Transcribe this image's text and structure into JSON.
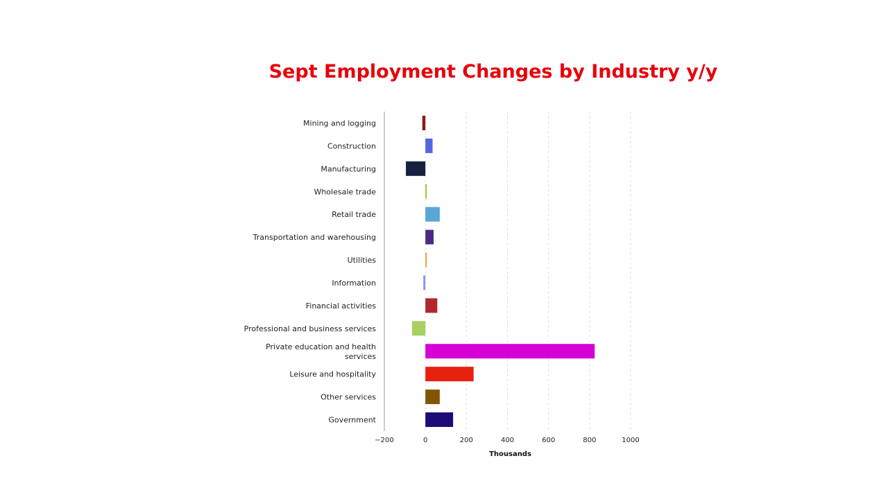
{
  "slide": {
    "title": "Sept Employment Changes by Industry y/y",
    "title_color": "#e8000b"
  },
  "chart_data": {
    "type": "bar",
    "orientation": "horizontal",
    "title": "Sept Employment Changes by Industry y/y",
    "xlabel": "Thousands",
    "ylabel": "",
    "xlim": [
      -200,
      1000
    ],
    "xticks": [
      -200,
      0,
      200,
      400,
      600,
      800,
      1000
    ],
    "xtick_labels": [
      "−200",
      "0",
      "200",
      "400",
      "600",
      "800",
      "1000"
    ],
    "grid": "vertical dashed",
    "categories": [
      "Mining and logging",
      "Construction",
      "Manufacturing",
      "Wholesale trade",
      "Retail trade",
      "Transportation and warehousing",
      "Utilities",
      "Information",
      "Financial activities",
      "Professional and business services",
      "Private education and health services",
      "Leisure and hospitality",
      "Other services",
      "Government"
    ],
    "values": [
      -15,
      35,
      -95,
      5,
      70,
      40,
      5,
      -10,
      58,
      -65,
      825,
      235,
      70,
      135
    ],
    "colors": [
      "#8b1a1a",
      "#5566dd",
      "#17203f",
      "#99cc33",
      "#5aa6d6",
      "#4a2a82",
      "#f0a030",
      "#8899ee",
      "#b0282e",
      "#a8d060",
      "#d600d6",
      "#e8210f",
      "#835400",
      "#1e0a78"
    ]
  }
}
